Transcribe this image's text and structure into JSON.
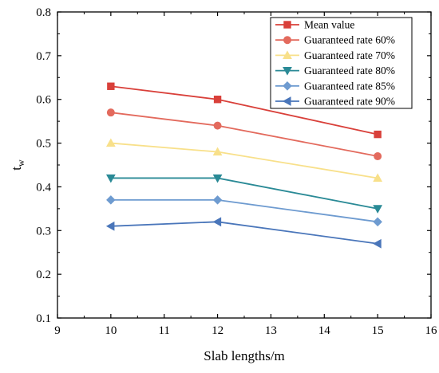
{
  "chart_data": {
    "type": "line",
    "title": "",
    "xlabel": "Slab lengths/m",
    "ylabel": {
      "main": "t",
      "sub": "w"
    },
    "xlim": [
      9,
      16
    ],
    "ylim": [
      0.1,
      0.8
    ],
    "xticks": [
      9,
      10,
      11,
      12,
      13,
      14,
      15,
      16
    ],
    "yticks": [
      0.1,
      0.2,
      0.3,
      0.4,
      0.5,
      0.6,
      0.7,
      0.8
    ],
    "xtick_labels": [
      "9",
      "10",
      "11",
      "12",
      "13",
      "14",
      "15",
      "16"
    ],
    "ytick_labels": [
      "0.1",
      "0.2",
      "0.3",
      "0.4",
      "0.5",
      "0.6",
      "0.7",
      "0.8"
    ],
    "grid": false,
    "legend_position": "top-right",
    "x": [
      10,
      12,
      15
    ],
    "series": [
      {
        "name": "Mean value",
        "values": [
          0.63,
          0.6,
          0.52
        ],
        "color": "#d9403a",
        "marker": "square"
      },
      {
        "name": "Guaranteed rate 60%",
        "values": [
          0.57,
          0.54,
          0.47
        ],
        "color": "#e36a5d",
        "marker": "circle"
      },
      {
        "name": "Guaranteed rate 70%",
        "values": [
          0.5,
          0.48,
          0.42
        ],
        "color": "#f8e08a",
        "marker": "triangle-up"
      },
      {
        "name": "Guaranteed rate 80%",
        "values": [
          0.42,
          0.42,
          0.35
        ],
        "color": "#2a8a96",
        "marker": "triangle-down"
      },
      {
        "name": "Guaranteed rate 85%",
        "values": [
          0.37,
          0.37,
          0.32
        ],
        "color": "#6e9bd0",
        "marker": "diamond"
      },
      {
        "name": "Guaranteed rate 90%",
        "values": [
          0.31,
          0.32,
          0.27
        ],
        "color": "#4a76ba",
        "marker": "triangle-left"
      }
    ]
  }
}
